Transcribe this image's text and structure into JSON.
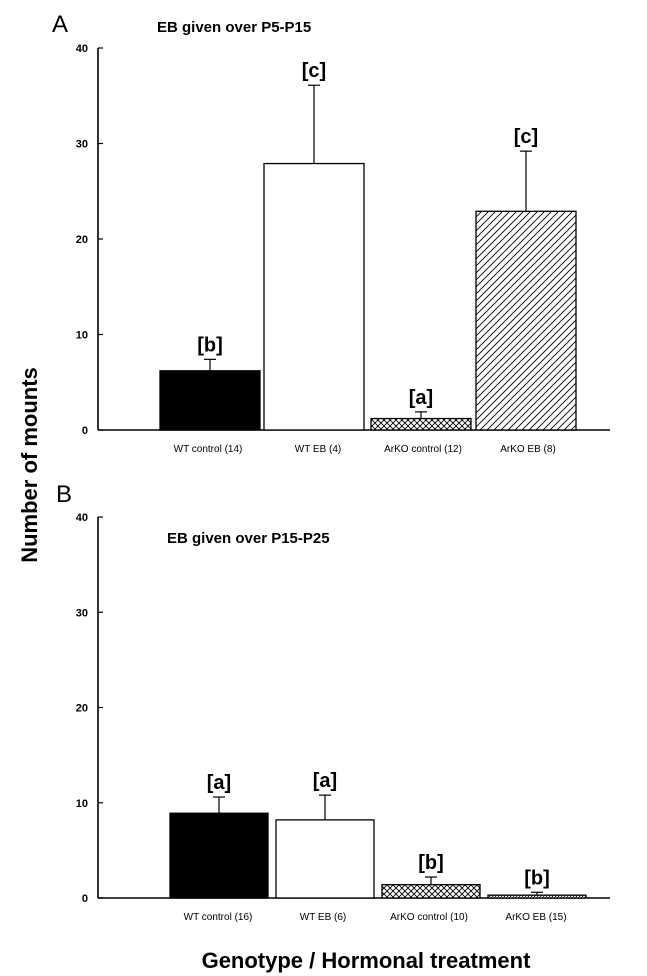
{
  "ylabel": "Number of mounts",
  "xlabel": "Genotype / Hormonal treatment",
  "chart_data": [
    {
      "type": "bar",
      "panel": "A",
      "title": "EB given over P5-P15",
      "categories": [
        "WT control (14)",
        "WT EB (4)",
        "ArKO control (12)",
        "ArKO EB (8)"
      ],
      "values": [
        6.2,
        27.9,
        1.2,
        22.9
      ],
      "errors": [
        1.2,
        8.2,
        0.7,
        6.3
      ],
      "significance": [
        "[b]",
        "[c]",
        "[a]",
        "[c]"
      ],
      "fills": [
        "solid-black",
        "white",
        "crosshatch",
        "diagonal-hatch"
      ],
      "ylim": [
        0,
        40
      ],
      "yticks": [
        "0",
        "10",
        "20",
        "30",
        "40"
      ]
    },
    {
      "type": "bar",
      "panel": "B",
      "title": "EB given over P15-P25",
      "categories": [
        "WT control (16)",
        "WT EB (6)",
        "ArKO control (10)",
        "ArKO EB (15)"
      ],
      "values": [
        8.9,
        8.2,
        1.4,
        0.3
      ],
      "errors": [
        1.7,
        2.6,
        0.8,
        0.3
      ],
      "significance": [
        "[a]",
        "[a]",
        "[b]",
        "[b]"
      ],
      "fills": [
        "solid-black",
        "white",
        "crosshatch",
        "dense-hatch"
      ],
      "ylim": [
        0,
        40
      ],
      "yticks": [
        "0",
        "10",
        "20",
        "30",
        "40"
      ]
    }
  ]
}
